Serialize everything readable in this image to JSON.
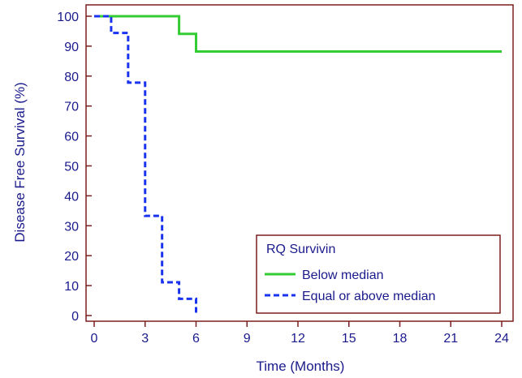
{
  "chart_data": {
    "type": "line",
    "title": "",
    "xlabel": "Time (Months)",
    "ylabel": "Disease Free Survival (%)",
    "xlim": [
      0,
      24
    ],
    "ylim": [
      0,
      100
    ],
    "xticks": [
      0,
      3,
      6,
      9,
      12,
      15,
      18,
      21,
      24
    ],
    "yticks": [
      0,
      10,
      20,
      30,
      40,
      50,
      60,
      70,
      80,
      90,
      100
    ],
    "grid": false,
    "step": true,
    "legend": {
      "title": "RQ Survivin",
      "position": "bottom-right"
    },
    "series": [
      {
        "name": "Below median",
        "color": "#33cc33",
        "dash": "solid",
        "x": [
          0,
          5,
          6,
          24
        ],
        "y": [
          100,
          94.1,
          88.2,
          88.2
        ]
      },
      {
        "name": "Equal or above median",
        "color": "#1a33ee",
        "dash": "dashed",
        "x": [
          0,
          1,
          2,
          3,
          4,
          5,
          6
        ],
        "y": [
          100,
          94.4,
          77.8,
          33.3,
          11.1,
          5.6,
          0
        ]
      }
    ],
    "colors": {
      "axis": "#7a1f1f",
      "text": "#1a1a8c"
    }
  }
}
